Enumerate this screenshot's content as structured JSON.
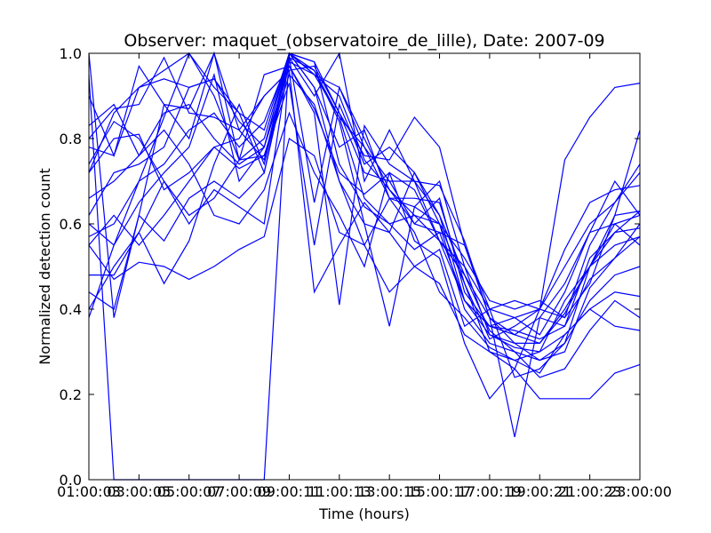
{
  "chart_data": {
    "type": "line",
    "title": "Observer: maquet_(observatoire_de_lille), Date: 2007-09",
    "xlabel": "Time (hours)",
    "ylabel": "Normalized detection count",
    "xlim": [
      1,
      23
    ],
    "ylim": [
      0,
      1
    ],
    "x_tick_labels": [
      "01:00:03",
      "03:00:05",
      "05:00:07",
      "07:00:09",
      "09:00:11",
      "11:00:13",
      "13:00:15",
      "15:00:17",
      "17:00:19",
      "19:00:21",
      "21:00:23",
      "23:00:00"
    ],
    "x_tick_values": [
      1,
      3,
      5,
      7,
      9,
      11,
      13,
      15,
      17,
      19,
      21,
      23
    ],
    "y_tick_labels": [
      "0.0",
      "0.2",
      "0.4",
      "0.6",
      "0.8",
      "1.0"
    ],
    "y_tick_values": [
      0,
      0.2,
      0.4,
      0.6,
      0.8,
      1.0
    ],
    "line_color": "#0000ff",
    "grid": false,
    "x": [
      1,
      2,
      3,
      4,
      5,
      6,
      7,
      8,
      9,
      10,
      11,
      12,
      13,
      14,
      15,
      16,
      17,
      18,
      19,
      20,
      21,
      22,
      23
    ],
    "series": [
      {
        "values": [
          1.0,
          0.38,
          0.62,
          0.88,
          0.87,
          1.0,
          0.82,
          0.75,
          1.0,
          0.96,
          0.85,
          0.78,
          0.7,
          0.6,
          0.58,
          0.55,
          0.38,
          0.32,
          0.32,
          0.4,
          0.5,
          0.62,
          0.82
        ]
      },
      {
        "values": [
          0.38,
          0.55,
          0.7,
          0.85,
          1.0,
          0.92,
          0.86,
          0.72,
          1.0,
          0.95,
          0.9,
          0.75,
          0.68,
          0.62,
          0.6,
          0.52,
          0.42,
          0.4,
          0.42,
          0.38,
          0.55,
          0.65,
          0.72
        ]
      },
      {
        "values": [
          0.9,
          0.76,
          0.97,
          0.88,
          0.8,
          1.0,
          0.75,
          0.8,
          1.0,
          0.92,
          0.78,
          0.82,
          0.66,
          0.64,
          0.7,
          0.5,
          0.34,
          0.32,
          0.28,
          0.3,
          0.45,
          0.52,
          0.6
        ]
      },
      {
        "values": [
          0.8,
          0.87,
          0.88,
          0.99,
          0.86,
          0.85,
          0.82,
          0.9,
          0.96,
          0.97,
          0.86,
          0.76,
          0.75,
          0.85,
          0.78,
          0.55,
          0.4,
          0.42,
          0.4,
          0.5,
          0.6,
          0.65,
          0.74
        ]
      },
      {
        "values": [
          0.6,
          0.55,
          0.65,
          0.72,
          0.78,
          0.95,
          0.7,
          0.78,
          1.0,
          0.92,
          0.7,
          0.6,
          0.58,
          0.72,
          0.62,
          0.48,
          0.35,
          0.3,
          0.28,
          0.32,
          0.5,
          0.6,
          0.55
        ]
      },
      {
        "values": [
          0.4,
          0.5,
          0.58,
          0.7,
          0.62,
          0.66,
          0.75,
          0.76,
          0.95,
          0.88,
          0.7,
          0.55,
          0.66,
          0.66,
          0.65,
          0.46,
          0.33,
          0.36,
          0.4,
          0.38,
          0.46,
          0.62,
          0.63
        ]
      },
      {
        "values": [
          0.48,
          0.48,
          0.58,
          0.46,
          0.56,
          0.74,
          0.88,
          0.74,
          0.99,
          0.65,
          0.92,
          0.78,
          0.66,
          0.58,
          0.44,
          0.38,
          0.31,
          0.28,
          0.25,
          0.34,
          0.4,
          0.44,
          0.43
        ]
      },
      {
        "values": [
          0.72,
          0.8,
          0.81,
          0.68,
          0.72,
          0.78,
          0.73,
          0.76,
          0.93,
          0.55,
          0.88,
          0.74,
          0.78,
          0.72,
          0.6,
          0.46,
          0.3,
          0.28,
          0.3,
          0.42,
          0.5,
          0.58,
          0.59
        ]
      },
      {
        "values": [
          0.62,
          0.72,
          0.74,
          0.78,
          0.92,
          0.94,
          0.84,
          0.78,
          0.97,
          0.86,
          0.41,
          0.83,
          0.74,
          0.7,
          0.69,
          0.56,
          0.38,
          0.1,
          0.38,
          0.36,
          0.47,
          0.52,
          0.57
        ]
      },
      {
        "values": [
          0.55,
          0.62,
          0.55,
          0.62,
          0.7,
          0.78,
          0.8,
          0.9,
          0.96,
          0.44,
          0.55,
          0.65,
          0.58,
          0.5,
          0.54,
          0.36,
          0.4,
          0.24,
          0.26,
          0.32,
          0.42,
          0.48,
          0.5
        ]
      },
      {
        "values": [
          0.72,
          0.86,
          0.92,
          0.96,
          1.0,
          0.9,
          0.75,
          0.95,
          0.97,
          0.87,
          0.72,
          0.67,
          0.72,
          0.56,
          0.52,
          0.32,
          0.19,
          0.26,
          0.4,
          0.54,
          0.65,
          0.68,
          0.69
        ]
      },
      {
        "values": [
          0.55,
          0.47,
          0.51,
          0.5,
          0.47,
          0.5,
          0.54,
          0.57,
          0.8,
          0.76,
          0.58,
          0.55,
          0.44,
          0.5,
          0.46,
          0.34,
          0.3,
          0.26,
          0.19,
          0.19,
          0.19,
          0.25,
          0.27
        ]
      },
      {
        "values": [
          0.83,
          0.88,
          0.76,
          0.82,
          0.74,
          0.62,
          0.6,
          0.68,
          0.86,
          0.72,
          0.62,
          0.5,
          0.72,
          0.68,
          0.56,
          0.42,
          0.36,
          0.38,
          0.34,
          0.44,
          0.58,
          0.7,
          0.62
        ]
      },
      {
        "values": [
          0.44,
          0.4,
          0.62,
          0.56,
          0.66,
          0.7,
          0.66,
          0.72,
          0.98,
          0.95,
          0.85,
          0.66,
          0.6,
          0.54,
          0.58,
          0.42,
          0.34,
          0.31,
          0.3,
          0.34,
          0.4,
          0.36,
          0.35
        ]
      },
      {
        "values": [
          0.74,
          0.84,
          0.8,
          0.7,
          0.6,
          0.68,
          0.64,
          0.6,
          0.99,
          0.96,
          0.84,
          0.6,
          0.36,
          0.64,
          0.6,
          0.4,
          0.32,
          0.3,
          0.24,
          0.26,
          0.35,
          0.42,
          0.38
        ]
      },
      {
        "values": [
          0.57,
          0.6,
          0.7,
          0.74,
          0.82,
          0.86,
          0.78,
          0.84,
          0.99,
          0.9,
          1.0,
          0.7,
          0.82,
          0.7,
          0.56,
          0.48,
          0.38,
          0.34,
          0.32,
          0.39,
          0.5,
          0.55,
          0.57
        ]
      },
      {
        "values": [
          0.66,
          0.7,
          0.76,
          0.86,
          0.88,
          0.8,
          0.74,
          0.78,
          1.0,
          0.95,
          0.92,
          0.8,
          0.68,
          0.6,
          0.66,
          0.44,
          0.36,
          0.34,
          0.38,
          0.46,
          0.58,
          0.6,
          0.62
        ]
      },
      {
        "values": [
          0.78,
          0.76,
          0.92,
          0.94,
          0.92,
          0.94,
          0.86,
          0.82,
          1.0,
          0.98,
          0.86,
          0.72,
          0.7,
          0.7,
          0.62,
          0.42,
          0.36,
          0.35,
          0.33,
          0.36,
          0.52,
          0.58,
          0.63
        ]
      },
      {
        "values": [
          0.95,
          0.0,
          0.0,
          0.0,
          0.0,
          0.0,
          0.0,
          0.0,
          1.0,
          0.98,
          0.74,
          0.64,
          0.6,
          0.62,
          0.56,
          0.5,
          0.4,
          0.38,
          0.4,
          0.75,
          0.85,
          0.92,
          0.93
        ]
      }
    ]
  }
}
